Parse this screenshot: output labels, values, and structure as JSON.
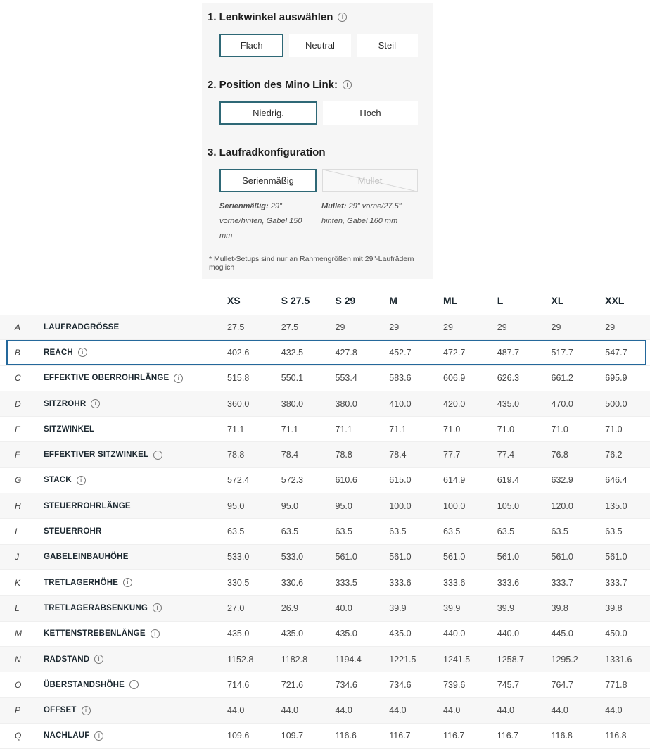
{
  "colors": {
    "selected_button_border": "#2e6876",
    "highlighted_row_border": "#24689b",
    "panel_background": "#f6f6f6",
    "shaded_row_background": "#f7f7f7"
  },
  "configurator": {
    "sections": [
      {
        "number": "1.",
        "title": "Lenkwinkel auswählen",
        "has_info": true,
        "options": [
          {
            "label": "Flach",
            "selected": true,
            "disabled": false
          },
          {
            "label": "Neutral",
            "selected": false,
            "disabled": false
          },
          {
            "label": "Steil",
            "selected": false,
            "disabled": false
          }
        ]
      },
      {
        "number": "2.",
        "title": "Position des Mino Link:",
        "has_info": true,
        "options": [
          {
            "label": "Niedrig.",
            "selected": true,
            "disabled": false
          },
          {
            "label": "Hoch",
            "selected": false,
            "disabled": false
          }
        ]
      },
      {
        "number": "3.",
        "title": "Laufradkonfiguration",
        "has_info": false,
        "options": [
          {
            "label": "Serienmäßig",
            "selected": true,
            "disabled": false
          },
          {
            "label": "Mullet",
            "selected": false,
            "disabled": true
          }
        ]
      }
    ],
    "captions": [
      {
        "term": "Serienmäßig:",
        "text": " 29\" vorne/hinten, Gabel 150 mm"
      },
      {
        "term": "Mullet:",
        "text": " 29\" vorne/27.5\" hinten, Gabel 160 mm"
      }
    ],
    "footnote": "* Mullet-Setups sind nur an Rahmengrößen mit 29\"-Laufrädern möglich"
  },
  "table": {
    "columns": [
      "XS",
      "S 27.5",
      "S 29",
      "M",
      "ML",
      "L",
      "XL",
      "XXL"
    ],
    "highlighted_row": "B",
    "rows": [
      {
        "letter": "A",
        "label": "LAUFRADGRÖSSE",
        "info": false,
        "values": [
          "27.5",
          "27.5",
          "29",
          "29",
          "29",
          "29",
          "29",
          "29"
        ]
      },
      {
        "letter": "B",
        "label": "REACH",
        "info": true,
        "values": [
          "402.6",
          "432.5",
          "427.8",
          "452.7",
          "472.7",
          "487.7",
          "517.7",
          "547.7"
        ]
      },
      {
        "letter": "C",
        "label": "EFFEKTIVE OBERROHRLÄNGE",
        "info": true,
        "values": [
          "515.8",
          "550.1",
          "553.4",
          "583.6",
          "606.9",
          "626.3",
          "661.2",
          "695.9"
        ]
      },
      {
        "letter": "D",
        "label": "SITZROHR",
        "info": true,
        "values": [
          "360.0",
          "380.0",
          "380.0",
          "410.0",
          "420.0",
          "435.0",
          "470.0",
          "500.0"
        ]
      },
      {
        "letter": "E",
        "label": "SITZWINKEL",
        "info": false,
        "values": [
          "71.1",
          "71.1",
          "71.1",
          "71.1",
          "71.0",
          "71.0",
          "71.0",
          "71.0"
        ]
      },
      {
        "letter": "F",
        "label": "EFFEKTIVER SITZWINKEL",
        "info": true,
        "values": [
          "78.8",
          "78.4",
          "78.8",
          "78.4",
          "77.7",
          "77.4",
          "76.8",
          "76.2"
        ]
      },
      {
        "letter": "G",
        "label": "STACK",
        "info": true,
        "values": [
          "572.4",
          "572.3",
          "610.6",
          "615.0",
          "614.9",
          "619.4",
          "632.9",
          "646.4"
        ]
      },
      {
        "letter": "H",
        "label": "STEUERROHRLÄNGE",
        "info": false,
        "values": [
          "95.0",
          "95.0",
          "95.0",
          "100.0",
          "100.0",
          "105.0",
          "120.0",
          "135.0"
        ]
      },
      {
        "letter": "I",
        "label": "STEUERROHR",
        "info": false,
        "values": [
          "63.5",
          "63.5",
          "63.5",
          "63.5",
          "63.5",
          "63.5",
          "63.5",
          "63.5"
        ]
      },
      {
        "letter": "J",
        "label": "GABELEINBAUHÖHE",
        "info": false,
        "values": [
          "533.0",
          "533.0",
          "561.0",
          "561.0",
          "561.0",
          "561.0",
          "561.0",
          "561.0"
        ]
      },
      {
        "letter": "K",
        "label": "TRETLAGERHÖHE",
        "info": true,
        "values": [
          "330.5",
          "330.6",
          "333.5",
          "333.6",
          "333.6",
          "333.6",
          "333.7",
          "333.7"
        ]
      },
      {
        "letter": "L",
        "label": "TRETLAGERABSENKUNG",
        "info": true,
        "values": [
          "27.0",
          "26.9",
          "40.0",
          "39.9",
          "39.9",
          "39.9",
          "39.8",
          "39.8"
        ]
      },
      {
        "letter": "M",
        "label": "KETTENSTREBENLÄNGE",
        "info": true,
        "values": [
          "435.0",
          "435.0",
          "435.0",
          "435.0",
          "440.0",
          "440.0",
          "445.0",
          "450.0"
        ]
      },
      {
        "letter": "N",
        "label": "RADSTAND",
        "info": true,
        "values": [
          "1152.8",
          "1182.8",
          "1194.4",
          "1221.5",
          "1241.5",
          "1258.7",
          "1295.2",
          "1331.6"
        ]
      },
      {
        "letter": "O",
        "label": "ÜBERSTANDSHÖHE",
        "info": true,
        "values": [
          "714.6",
          "721.6",
          "734.6",
          "734.6",
          "739.6",
          "745.7",
          "764.7",
          "771.8"
        ]
      },
      {
        "letter": "P",
        "label": "OFFSET",
        "info": true,
        "values": [
          "44.0",
          "44.0",
          "44.0",
          "44.0",
          "44.0",
          "44.0",
          "44.0",
          "44.0"
        ]
      },
      {
        "letter": "Q",
        "label": "NACHLAUF",
        "info": true,
        "values": [
          "109.6",
          "109.7",
          "116.6",
          "116.7",
          "116.7",
          "116.7",
          "116.8",
          "116.8"
        ]
      }
    ]
  }
}
